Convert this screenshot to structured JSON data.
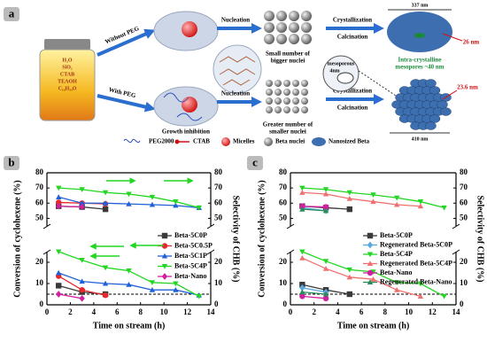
{
  "panel_a": {
    "label": "a",
    "jar": [
      "H₂O",
      "SiO₂",
      "CTAB",
      "TEAOH",
      "C₁₆H₃₄O"
    ],
    "without_peg": "Without PEG",
    "with_peg": "With PEG",
    "top": {
      "step1": "Nucleation",
      "result_1": "Small number of",
      "result_2": "bigger nuclei",
      "step2": "Crystallization",
      "step3": "Calcination",
      "size": "337 nm",
      "wall": "26 nm",
      "mesopores_1": "Intra-crystalline",
      "mesopores_2": "mesopores ~40 nm",
      "inset_1": "mesoporous",
      "inset_2": "4nm"
    },
    "bottom": {
      "inhibition": "Growth inhibition",
      "step1": "Nucleation",
      "result_1": "Greater number of",
      "result_2": "smaller nuclei",
      "step2": "Crystallization",
      "step3": "Calcination",
      "wall": "23.6 nm",
      "size": "410 nm"
    },
    "legend": [
      "PEG2000",
      "CTAB",
      "Micelles",
      "Beta nuclei",
      "Nanosized Beta"
    ]
  },
  "chart_data": [
    {
      "type": "line",
      "label": "b",
      "xlabel": "Time on stream (h)",
      "ylabel": "Conversion of cyclohexene (%)",
      "y2label": "Selectivity of CHB (%)",
      "xlim": [
        0,
        14
      ],
      "xticks": [
        0,
        2,
        4,
        6,
        8,
        10,
        12,
        14
      ],
      "ylim": [
        0,
        80
      ],
      "yticks": [
        0,
        10,
        20,
        50,
        60,
        70,
        80
      ],
      "y2lim": [
        0,
        80
      ],
      "y2ticks": [
        0,
        10,
        20,
        50,
        60,
        70,
        80
      ],
      "y_break": [
        25,
        45
      ],
      "reference_line": 5,
      "series": [
        {
          "name": "Beta-5C0P",
          "color": "#3a3a3a",
          "marker": "square",
          "x": [
            1,
            3,
            5
          ],
          "values": [
            9,
            6,
            5
          ],
          "y2_values": [
            58,
            57.5,
            56
          ]
        },
        {
          "name": "Beta-5C0.5P",
          "color": "#e8262b",
          "marker": "circle",
          "x": [
            1,
            3,
            5
          ],
          "values": [
            13.5,
            7,
            4.5
          ],
          "y2_values": [
            60.5,
            60,
            59.5
          ]
        },
        {
          "name": "Beta-5C1P",
          "color": "#2060d8",
          "marker": "tri",
          "x": [
            1,
            3,
            5,
            7,
            9,
            11,
            13
          ],
          "values": [
            15,
            11,
            10,
            9.5,
            7,
            7,
            4.5
          ],
          "y2_values": [
            64,
            60,
            60,
            59.5,
            59,
            58.5,
            57
          ]
        },
        {
          "name": "Beta-5C4P",
          "color": "#22d622",
          "marker": "tridown",
          "x": [
            1,
            3,
            5,
            7,
            9,
            11,
            13
          ],
          "values": [
            25,
            21,
            17.5,
            16,
            10.5,
            10,
            4
          ],
          "y2_values": [
            70,
            69,
            67,
            66,
            64,
            61,
            57
          ]
        },
        {
          "name": "Beta-Nano",
          "color": "#d020a0",
          "marker": "diamond",
          "x": [
            1,
            3
          ],
          "values": [
            5,
            3
          ],
          "y2_values": [
            58,
            57.5
          ]
        }
      ]
    },
    {
      "type": "line",
      "label": "c",
      "xlabel": "Time on stream (h)",
      "ylabel": "Conversion of cyclohexene (%)",
      "y2label": "Selectivity of CHB (%)",
      "xlim": [
        0,
        14
      ],
      "xticks": [
        0,
        2,
        4,
        6,
        8,
        10,
        12,
        14
      ],
      "ylim": [
        0,
        80
      ],
      "yticks": [
        0,
        10,
        20,
        50,
        60,
        70,
        80
      ],
      "y2lim": [
        0,
        80
      ],
      "y2ticks": [
        0,
        10,
        20,
        50,
        60,
        70,
        80
      ],
      "y_break": [
        25,
        45
      ],
      "reference_line": 5,
      "series": [
        {
          "name": "Beta-5C0P",
          "color": "#3a3a3a",
          "marker": "square",
          "x": [
            1,
            3,
            5
          ],
          "values": [
            9.5,
            7,
            5
          ],
          "y2_values": [
            58,
            57,
            56
          ]
        },
        {
          "name": "Regenerated Beta-5C0P",
          "color": "#5aa8e0",
          "marker": "diamond",
          "x": [
            1,
            3
          ],
          "values": [
            8,
            6
          ],
          "y2_values": [
            57,
            55
          ]
        },
        {
          "name": "Beta-5C4P",
          "color": "#22d622",
          "marker": "tridown",
          "x": [
            1,
            3,
            5,
            7,
            9,
            11,
            13
          ],
          "values": [
            25,
            20.5,
            16.5,
            15.5,
            10.5,
            10,
            4
          ],
          "y2_values": [
            70,
            69,
            67,
            65.5,
            63.5,
            61,
            57
          ]
        },
        {
          "name": "Regenerated Beta-5C4P",
          "color": "#f07070",
          "marker": "tri",
          "x": [
            1,
            3,
            5,
            7,
            9,
            11
          ],
          "values": [
            22,
            17,
            13,
            12,
            7,
            4
          ],
          "y2_values": [
            67,
            66,
            63,
            61,
            59,
            58
          ]
        },
        {
          "name": "Beta-Nano",
          "color": "#d020a0",
          "marker": "circle",
          "x": [
            1,
            3
          ],
          "values": [
            4,
            3
          ],
          "y2_values": [
            58,
            57.5
          ]
        },
        {
          "name": "Regenerated Beta-Nano",
          "color": "#2a8a5a",
          "marker": "tri",
          "x": [
            1,
            3
          ],
          "values": [
            6,
            5
          ],
          "y2_values": [
            56,
            55
          ]
        }
      ]
    }
  ]
}
